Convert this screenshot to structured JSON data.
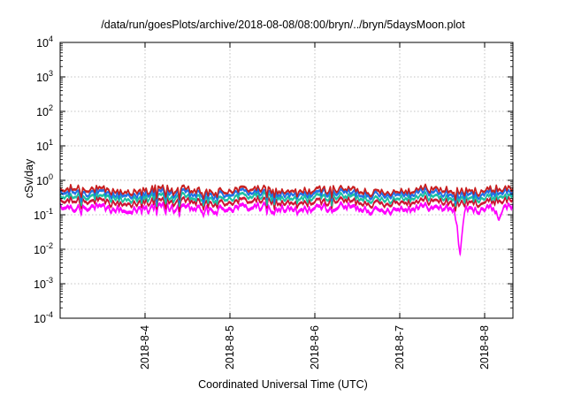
{
  "chart_data": {
    "type": "area",
    "title": "/data/run/goesPlots/archive/2018-08-08/08:00/bryn/../bryn/5daysMoon.plot",
    "xlabel": "Coordinated Universal Time (UTC)",
    "ylabel": "cSv/day",
    "yscale": "log",
    "ylim": [
      0.0001,
      10000
    ],
    "xlim": [
      "2018-08-03 00:00",
      "2018-08-08 08:00"
    ],
    "grid": true,
    "ytick_labels": [
      {
        "base": "10",
        "exp": "-4"
      },
      {
        "base": "10",
        "exp": "-3"
      },
      {
        "base": "10",
        "exp": "-2"
      },
      {
        "base": "10",
        "exp": "-1"
      },
      {
        "base": "10",
        "exp": "0"
      },
      {
        "base": "10",
        "exp": "1"
      },
      {
        "base": "10",
        "exp": "2"
      },
      {
        "base": "10",
        "exp": "3"
      },
      {
        "base": "10",
        "exp": "4"
      }
    ],
    "xtick_labels": [
      "2018-8-4",
      "2018-8-5",
      "2018-8-6",
      "2018-8-7",
      "2018-8-8"
    ],
    "series": [
      {
        "color": "#ff00ff",
        "baseline": 0.16,
        "dips": [
          {
            "x": "2018-08-03 04:00",
            "y": 0.13
          },
          {
            "x": "2018-08-03 19:00",
            "y": 0.12
          },
          {
            "x": "2018-08-05 12:00",
            "y": 0.12
          },
          {
            "x": "2018-08-06 05:00",
            "y": 0.13
          },
          {
            "x": "2018-08-07 17:00",
            "y": 0.006
          },
          {
            "x": "2018-08-08 04:00",
            "y": 0.07
          }
        ]
      },
      {
        "color": "#cc1030",
        "baseline": 0.24
      },
      {
        "color": "#18c0a0",
        "baseline": 0.32
      },
      {
        "color": "#1e6ee6",
        "baseline": 0.42
      },
      {
        "color": "#c81e1e",
        "baseline": 0.52
      }
    ]
  }
}
